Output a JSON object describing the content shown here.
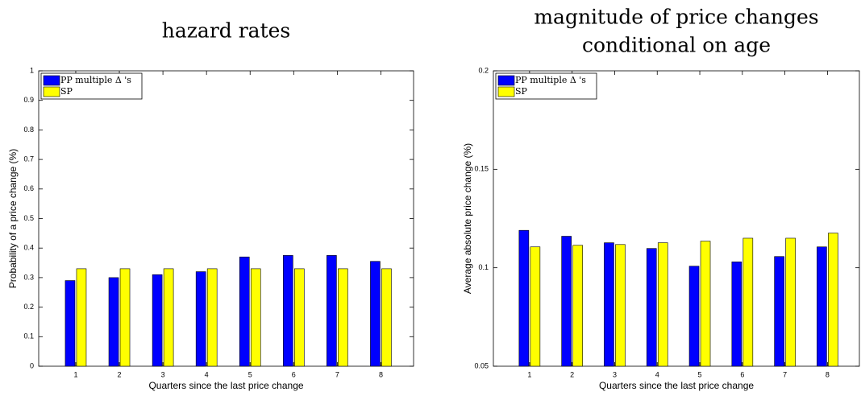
{
  "chart_data": [
    {
      "type": "bar",
      "title": [
        "hazard rates"
      ],
      "xlabel": "Quarters since the last price change",
      "ylabel": "Probability of a price change (%)",
      "categories": [
        "1",
        "2",
        "3",
        "4",
        "5",
        "6",
        "7",
        "8"
      ],
      "series": [
        {
          "name": "PP multiple Δ 's",
          "color": "#0000ff",
          "values": [
            0.29,
            0.3,
            0.31,
            0.32,
            0.37,
            0.375,
            0.375,
            0.355
          ]
        },
        {
          "name": "SP",
          "color": "#ffff00",
          "values": [
            0.33,
            0.33,
            0.33,
            0.33,
            0.33,
            0.33,
            0.33,
            0.33
          ]
        }
      ],
      "ylim": [
        0,
        1
      ],
      "yticks": [
        0,
        0.1,
        0.2,
        0.3,
        0.4,
        0.5,
        0.6,
        0.7,
        0.8,
        0.9,
        1
      ],
      "legend": "upper left"
    },
    {
      "type": "bar",
      "title": [
        "magnitude of price changes",
        "conditional on age"
      ],
      "xlabel": "Quarters since the last price change",
      "ylabel": "Average absolute price change (%)",
      "categories": [
        "1",
        "2",
        "3",
        "4",
        "5",
        "6",
        "7",
        "8"
      ],
      "series": [
        {
          "name": "PP multiple Δ 's",
          "color": "#0000ff",
          "values": [
            0.119,
            0.116,
            0.1127,
            0.1098,
            0.1008,
            0.103,
            0.1057,
            0.1106
          ]
        },
        {
          "name": "SP",
          "color": "#ffff00",
          "values": [
            0.1106,
            0.1114,
            0.1118,
            0.1127,
            0.1135,
            0.115,
            0.115,
            0.1176
          ]
        }
      ],
      "ylim": [
        0.05,
        0.2
      ],
      "yticks": [
        0.05,
        0.1,
        0.15,
        0.2
      ],
      "legend": "upper left"
    }
  ]
}
